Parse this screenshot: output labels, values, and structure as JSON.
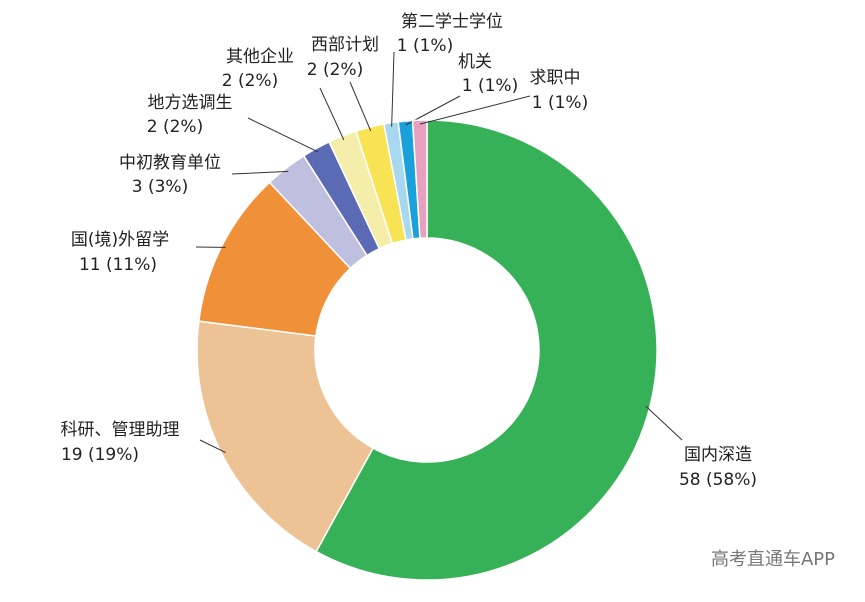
{
  "chart_data": {
    "type": "donut",
    "categories": [
      "国内深造",
      "科研、管理助理",
      "国(境)外留学",
      "中初教育单位",
      "地方选调生",
      "其他企业",
      "西部计划",
      "第二学士学位",
      "机关",
      "求职中"
    ],
    "values": [
      58,
      19,
      11,
      3,
      2,
      2,
      2,
      1,
      1,
      1
    ],
    "value_labels": [
      "58 (58%)",
      "19 (19%)",
      "11 (11%)",
      "3 (3%)",
      "2 (2%)",
      "2 (2%)",
      "2 (2%)",
      "1 (1%)",
      "1 (1%)",
      "1 (1%)"
    ],
    "colors": [
      "#36b157",
      "#edc396",
      "#f0913a",
      "#bfbfe0",
      "#5b6ab5",
      "#f5eeaa",
      "#f7e354",
      "#a8d8ef",
      "#1aa0db",
      "#e8a0c0"
    ],
    "watermark": "高考直通车APP"
  }
}
